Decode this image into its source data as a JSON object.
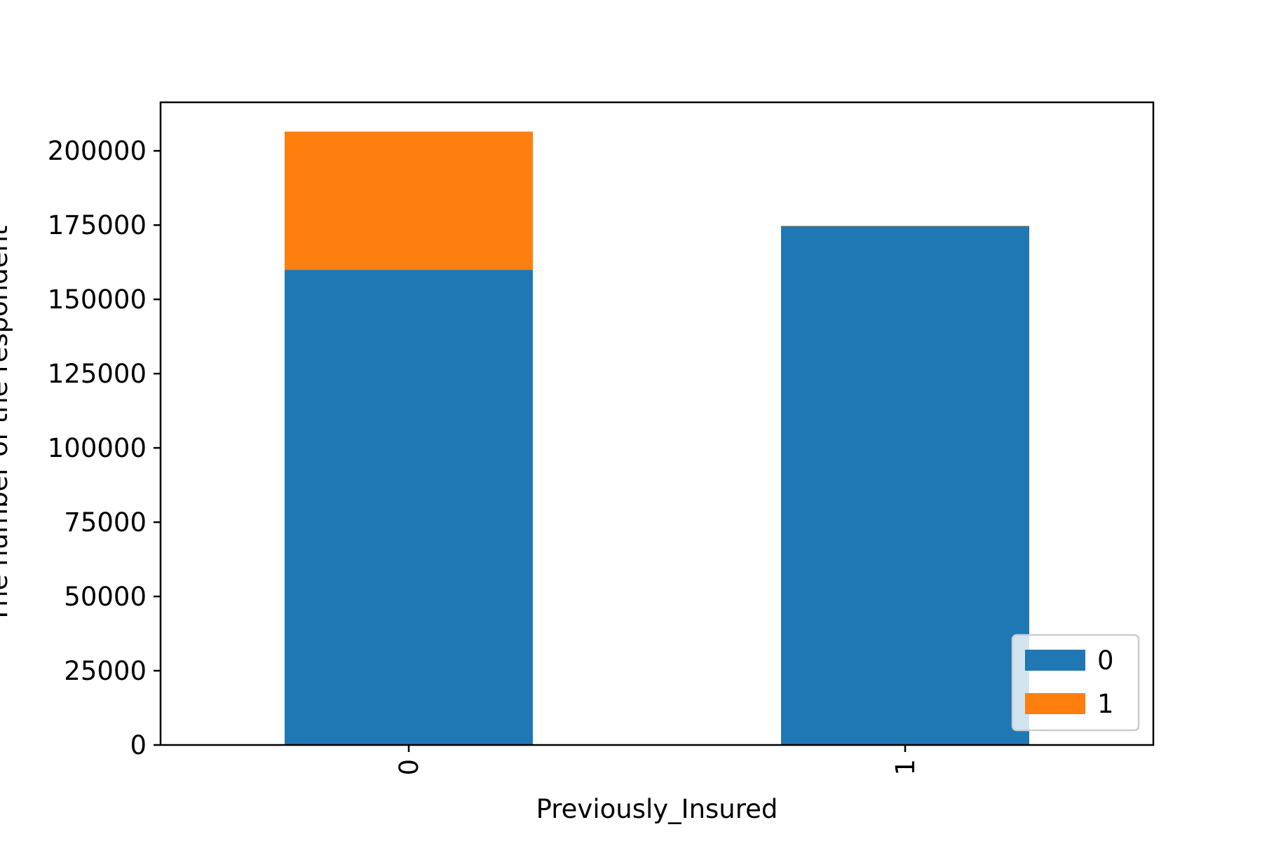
{
  "chart_data": {
    "type": "bar",
    "stacked": true,
    "categories": [
      "0",
      "1"
    ],
    "series": [
      {
        "name": "0",
        "values": [
          159929,
          174628
        ],
        "color": "#1f77b4"
      },
      {
        "name": "1",
        "values": [
          46552,
          158
        ],
        "color": "#ff7f0e"
      }
    ],
    "title": "",
    "xlabel": "Previously_Insured",
    "ylabel": "The number of the respondent",
    "ylim": [
      0,
      216325
    ],
    "yticks": [
      0,
      25000,
      50000,
      75000,
      100000,
      125000,
      150000,
      175000,
      200000
    ],
    "ytick_labels": [
      "0",
      "25000",
      "50000",
      "75000",
      "100000",
      "125000",
      "150000",
      "175000",
      "200000"
    ],
    "xtick_rotation": "vertical",
    "grid": false,
    "legend": {
      "placement": "bottom-right",
      "entries": [
        "0",
        "1"
      ]
    }
  }
}
